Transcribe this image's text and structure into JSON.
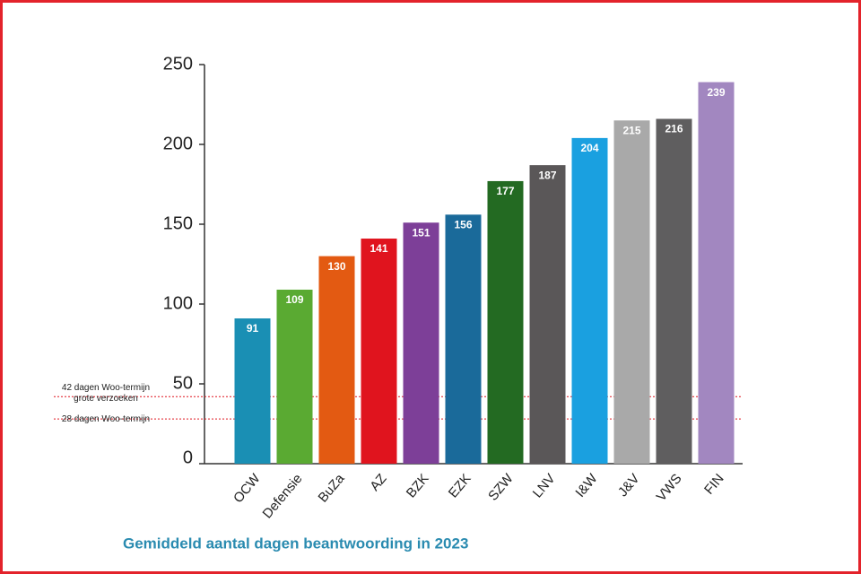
{
  "chart_data": {
    "type": "bar",
    "title": "Gemiddeld aantal dagen beantwoording in 2023",
    "categories": [
      "OCW",
      "Defensie",
      "BuZa",
      "AZ",
      "BZK",
      "EZK",
      "SZW",
      "LNV",
      "I&W",
      "J&V",
      "VWS",
      "FIN"
    ],
    "values": [
      91,
      109,
      130,
      141,
      151,
      156,
      177,
      187,
      204,
      215,
      216,
      239
    ],
    "colors": [
      "#1a8fb4",
      "#5aaa32",
      "#e35a12",
      "#e0141e",
      "#7d3f98",
      "#1a6a9a",
      "#236a22",
      "#5a5758",
      "#1aa0e0",
      "#a9a9a9",
      "#5f5e5f",
      "#a287c0"
    ],
    "ylim": [
      0,
      250
    ],
    "yticks": [
      0,
      50,
      100,
      150,
      200,
      250
    ],
    "reference_lines": [
      {
        "label": [
          "42 dagen Woo-termijn",
          "grote verzoeken"
        ],
        "value": 42,
        "color": "#e0141e"
      },
      {
        "label": [
          "28 dagen Woo-termijn"
        ],
        "value": 28,
        "color": "#e0141e"
      }
    ]
  }
}
